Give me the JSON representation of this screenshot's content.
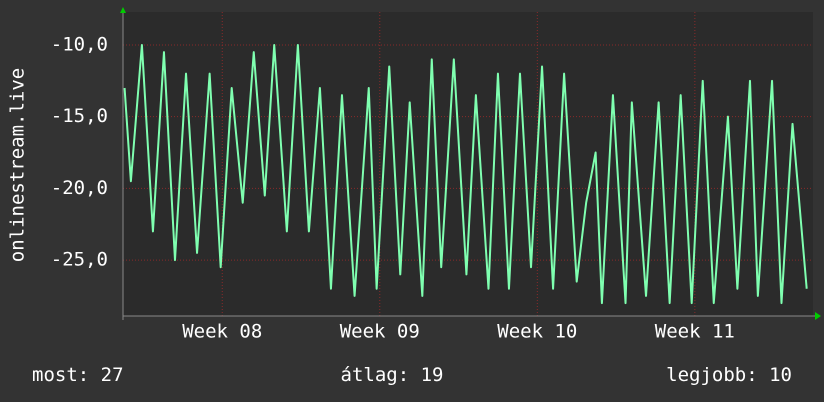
{
  "chart_data": {
    "type": "line",
    "y_label": "onlinestream.live",
    "x": [
      7.38,
      7.42,
      7.49,
      7.56,
      7.63,
      7.7,
      7.77,
      7.84,
      7.92,
      7.99,
      8.06,
      8.13,
      8.2,
      8.27,
      8.33,
      8.41,
      8.48,
      8.55,
      8.62,
      8.69,
      8.76,
      8.84,
      8.93,
      8.98,
      9.06,
      9.13,
      9.19,
      9.27,
      9.33,
      9.39,
      9.47,
      9.55,
      9.61,
      9.69,
      9.75,
      9.82,
      9.89,
      9.96,
      10.03,
      10.1,
      10.17,
      10.25,
      10.31,
      10.37,
      10.41,
      10.48,
      10.56,
      10.6,
      10.69,
      10.77,
      10.84,
      10.91,
      10.98,
      11.05,
      11.12,
      11.21,
      11.27,
      11.35,
      11.4,
      11.49,
      11.55,
      11.62,
      11.71
    ],
    "series": [
      {
        "name": "onlinestream.live",
        "color": "#7fffb0",
        "values": [
          -13,
          -19.5,
          -10,
          -23,
          -10.5,
          -25,
          -12,
          -24.5,
          -12,
          -25.5,
          -13,
          -21,
          -10.5,
          -20.5,
          -10,
          -23,
          -10,
          -23,
          -13,
          -27,
          -13.5,
          -27.5,
          -13,
          -27,
          -11.5,
          -26,
          -14,
          -27.5,
          -11,
          -25.5,
          -11,
          -26,
          -13.5,
          -27,
          -12,
          -27,
          -12,
          -25.5,
          -11.5,
          -27,
          -12,
          -26.5,
          -21,
          -17.5,
          -28,
          -13.5,
          -28,
          -14,
          -27.5,
          -14,
          -28,
          -13.5,
          -28,
          -12.5,
          -28,
          -15,
          -27,
          -12.5,
          -27.5,
          -12.5,
          -28,
          -15.5,
          -27
        ]
      }
    ],
    "xlim": [
      7.37,
      11.75
    ],
    "xticks": [
      {
        "value": 8,
        "label": "Week 08"
      },
      {
        "value": 9,
        "label": "Week 09"
      },
      {
        "value": 10,
        "label": "Week 10"
      },
      {
        "value": 11,
        "label": "Week 11"
      }
    ],
    "ylim": [
      -28.9,
      -7.7
    ],
    "yticks": [
      {
        "value": -25,
        "label": "-25,0"
      },
      {
        "value": -20,
        "label": "-20,0"
      },
      {
        "value": -15,
        "label": "-15,0"
      },
      {
        "value": -10,
        "label": "-10,0"
      }
    ],
    "grid": true,
    "footer": [
      "most: 27",
      "átlag: 19",
      "legjobb: 10"
    ]
  }
}
